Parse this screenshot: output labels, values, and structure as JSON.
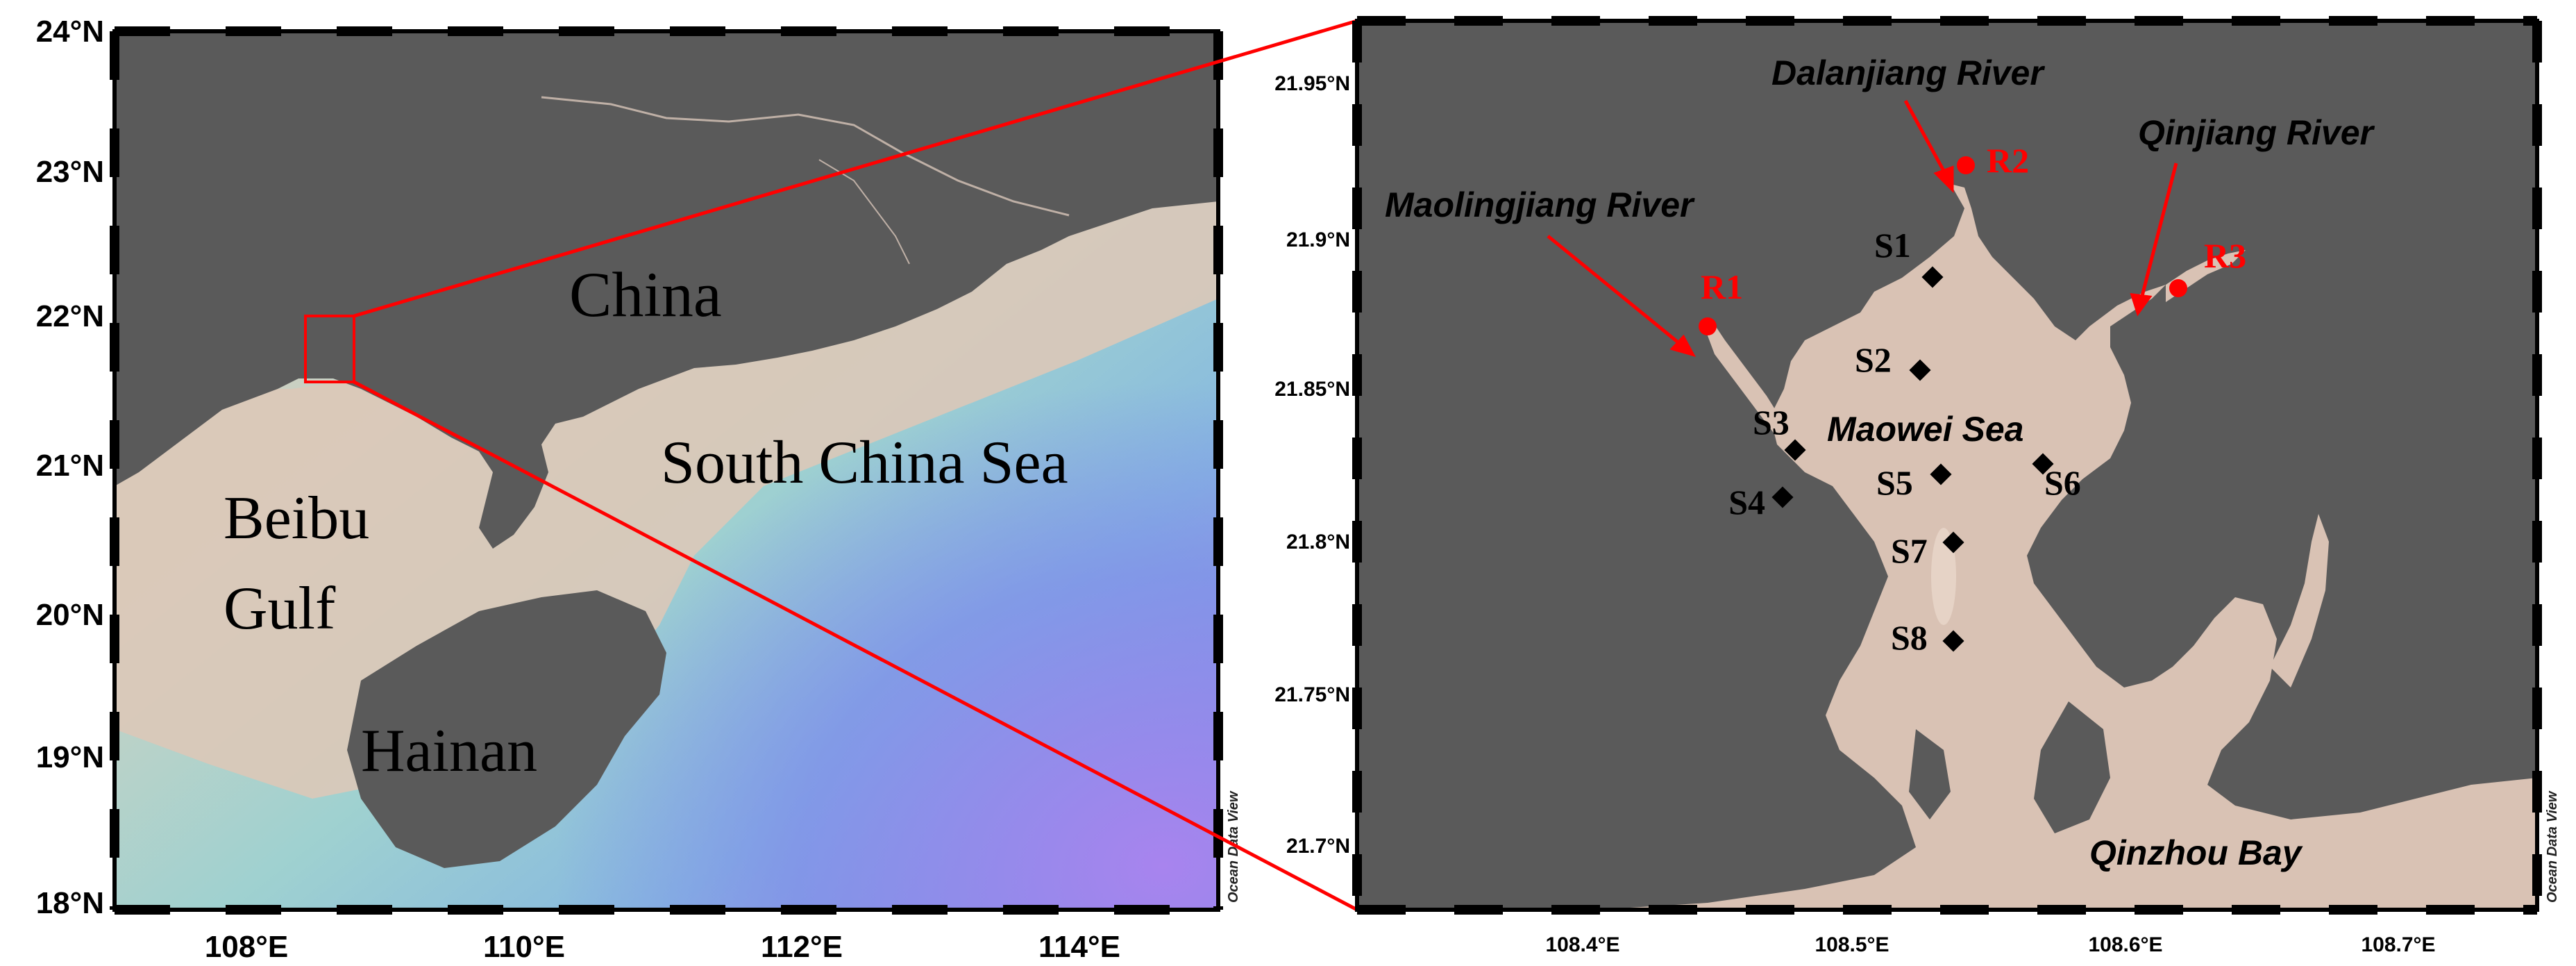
{
  "left_map": {
    "lat_ticks": [
      "24°N",
      "23°N",
      "22°N",
      "21°N",
      "20°N",
      "19°N",
      "18°N"
    ],
    "lon_ticks": [
      "108°E",
      "110°E",
      "112°E",
      "114°E"
    ],
    "labels": {
      "china": "China",
      "south_china_sea": "South China Sea",
      "beibu_1": "Beibu",
      "beibu_2": "Gulf",
      "hainan": "Hainan"
    },
    "credit": "Ocean Data View",
    "extent": {
      "lon": [
        107,
        115
      ],
      "lat": [
        18,
        24
      ]
    }
  },
  "right_map": {
    "lat_ticks": [
      "21.95°N",
      "21.9°N",
      "21.85°N",
      "21.8°N",
      "21.75°N",
      "21.7°N"
    ],
    "lon_ticks": [
      "108.4°E",
      "108.5°E",
      "108.6°E",
      "108.7°E"
    ],
    "rivers": {
      "dalanjiang": "Dalanjiang River",
      "qinjiang": "Qinjiang River",
      "maolingjiang": "Maolingjiang River"
    },
    "places": {
      "maowei": "Maowei Sea",
      "qinzhou": "Qinzhou Bay"
    },
    "river_stations": [
      "R1",
      "R2",
      "R3"
    ],
    "sea_stations": [
      "S1",
      "S2",
      "S3",
      "S4",
      "S5",
      "S6",
      "S7",
      "S8"
    ],
    "credit": "Ocean Data View",
    "extent": {
      "lon": [
        108.33,
        108.77
      ],
      "lat": [
        21.66,
        21.97
      ]
    }
  },
  "colors": {
    "land": "#5a5a5a",
    "shallow": "#d9c2b4",
    "deep_purple": "#9a7fe6",
    "marker_red": "#ff0000",
    "station_black": "#000000"
  }
}
